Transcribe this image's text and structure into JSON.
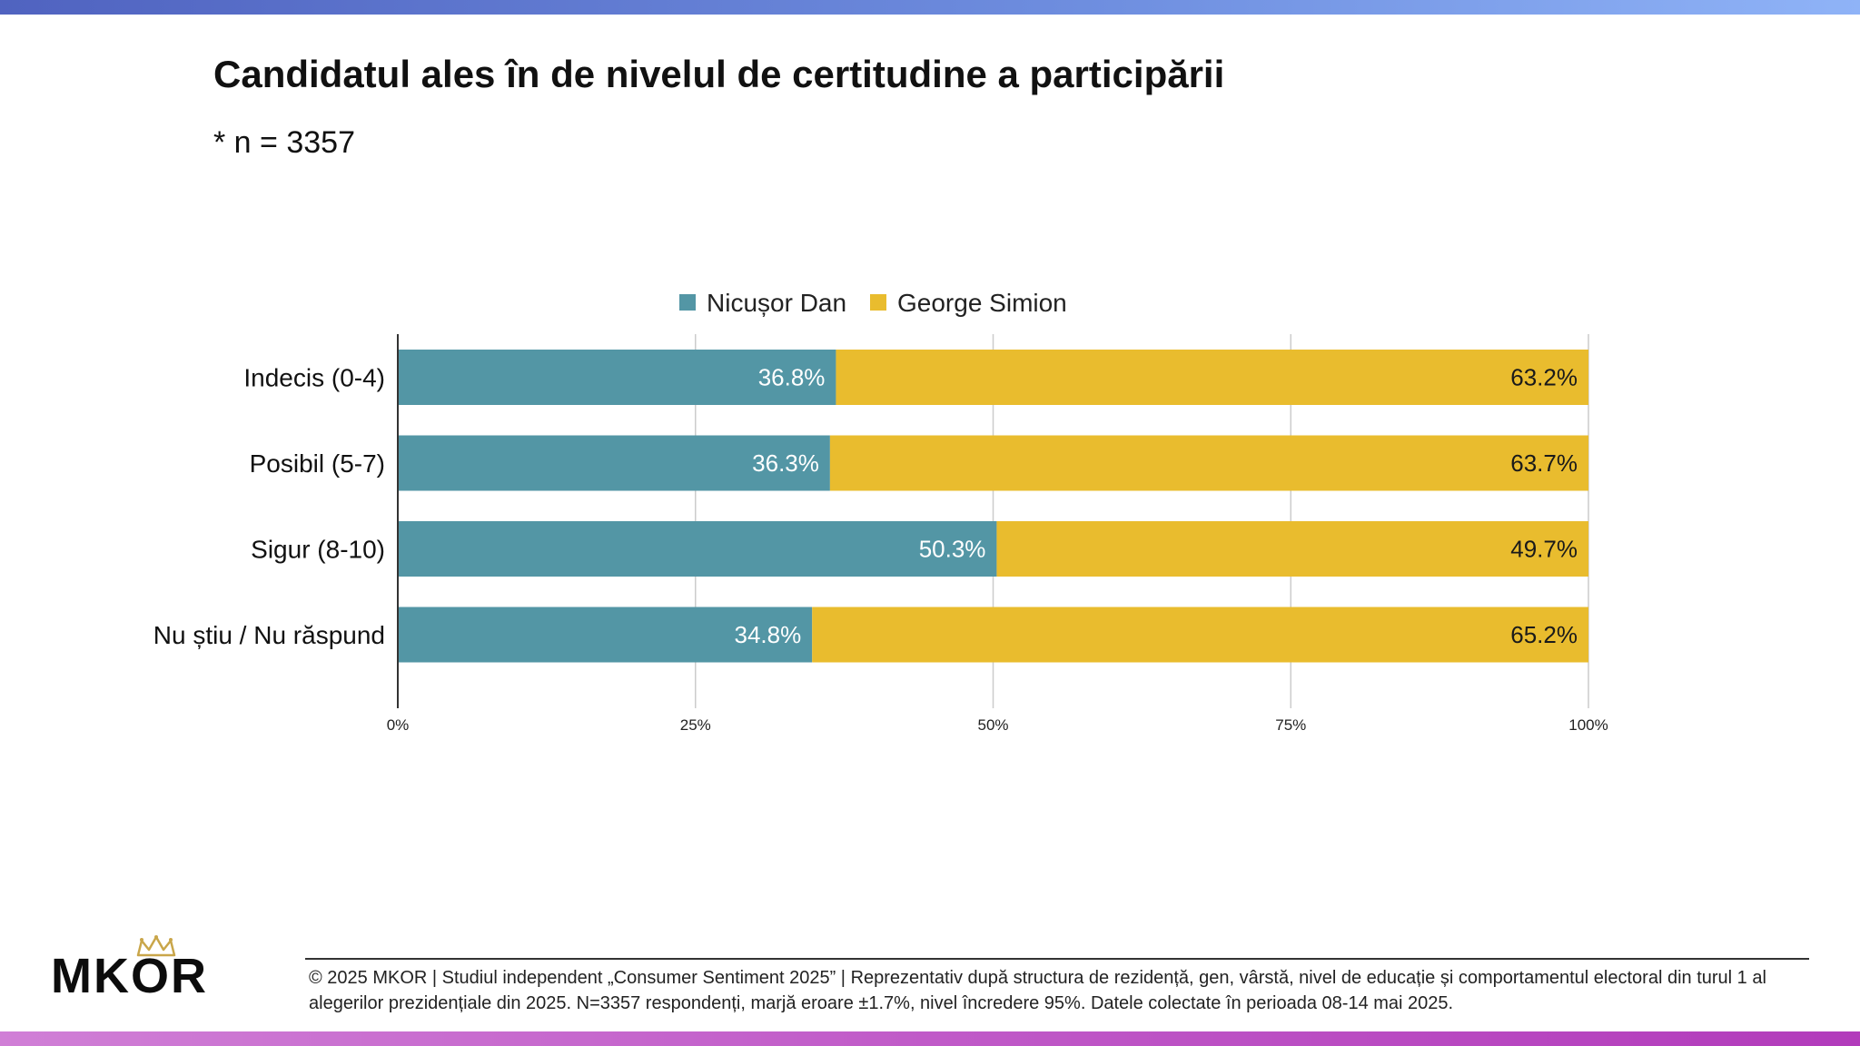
{
  "header": {
    "title": "Candidatul ales în de nivelul de certitudine a participării",
    "subtitle": "* n = 3357"
  },
  "colors": {
    "series_1": "#5396a5",
    "series_2": "#e9bc2e",
    "grid": "#cccccc",
    "axis": "#333333"
  },
  "chart_data": {
    "type": "bar",
    "stacked": true,
    "orientation": "horizontal",
    "title": "",
    "xlabel": "",
    "ylabel": "",
    "xlim": [
      0,
      100
    ],
    "categories": [
      "Indecis (0-4)",
      "Posibil (5-7)",
      "Sigur (8-10)",
      "Nu știu / Nu răspund"
    ],
    "series": [
      {
        "name": "Nicușor Dan",
        "values": [
          36.8,
          36.3,
          50.3,
          34.8
        ],
        "labels": [
          "36.8%",
          "36.3%",
          "50.3%",
          "34.8%"
        ]
      },
      {
        "name": "George Simion",
        "values": [
          63.2,
          63.7,
          49.7,
          65.2
        ],
        "labels": [
          "63.2%",
          "63.7%",
          "49.7%",
          "65.2%"
        ]
      }
    ],
    "ticks": [
      0,
      25,
      50,
      75,
      100
    ],
    "tick_labels": [
      "0%",
      "25%",
      "50%",
      "75%",
      "100%"
    ],
    "legend": "top-center",
    "grid": true
  },
  "logo": {
    "text": "MKOR"
  },
  "footer": {
    "text": "© 2025 MKOR | Studiul independent „Consumer Sentiment 2025” | Reprezentativ după structura de rezidență, gen, vârstă, nivel de educație și comportamentul electoral din turul 1 al alegerilor prezidențiale din 2025. N=3357 respondenți, marjă eroare ±1.7%, nivel încredere 95%. Datele colectate în perioada 08-14 mai 2025."
  }
}
